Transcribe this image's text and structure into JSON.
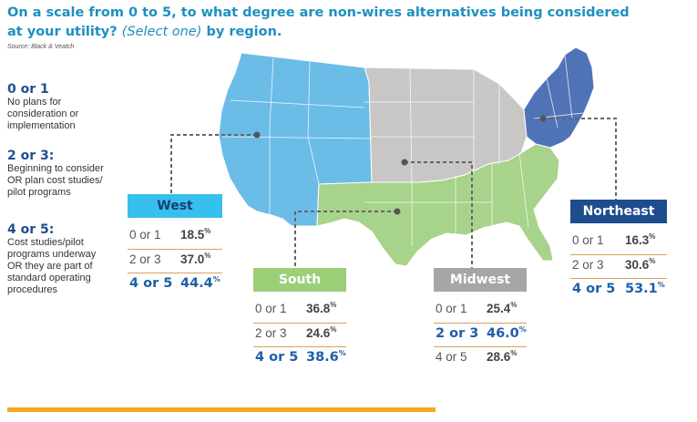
{
  "title": {
    "part1": "On a scale from 0 to 5, to what degree are non-wires alternatives being considered at your utility?",
    "italic": "(Select one)",
    "part2": "by region."
  },
  "source": "Source: Black & Veatch",
  "legend": [
    {
      "level": "0 or 1",
      "desc": [
        "No plans for",
        "consideration or",
        "implementation"
      ]
    },
    {
      "level": "2 or 3:",
      "desc": [
        "Beginning to consider",
        "OR plan cost studies/",
        "pilot programs"
      ]
    },
    {
      "level": "4 or 5:",
      "desc": [
        "Cost studies/pilot",
        "programs underway",
        "OR they are part of",
        "standard operating",
        "procedures"
      ]
    }
  ],
  "colors": {
    "west": "#6cbce8",
    "west_header": "#37c0ee",
    "south": "#a7d38a",
    "south_header": "#9bcf78",
    "midwest": "#c9c7c6",
    "midwest_header": "#a7a6a5",
    "northeast": "#5073b8",
    "northeast_header": "#1e4d8e",
    "accent_line": "#f5a623",
    "highlight_text": "#1f5fa8"
  },
  "chart_data": {
    "type": "table",
    "unit": "%",
    "categories": [
      "0 or 1",
      "2 or 3",
      "4 or 5"
    ],
    "series": [
      {
        "name": "West",
        "values": [
          18.5,
          37.0,
          44.4
        ]
      },
      {
        "name": "South",
        "values": [
          36.8,
          24.6,
          38.6
        ]
      },
      {
        "name": "Midwest",
        "values": [
          25.4,
          46.0,
          28.6
        ]
      },
      {
        "name": "Northeast",
        "values": [
          16.3,
          30.6,
          53.1
        ]
      }
    ]
  },
  "regions": {
    "west": {
      "name": "West",
      "rows": [
        {
          "label": "0 or 1",
          "value": "18.5"
        },
        {
          "label": "2 or 3",
          "value": "37.0"
        },
        {
          "label": "4 or 5",
          "value": "44.4"
        }
      ]
    },
    "south": {
      "name": "South",
      "rows": [
        {
          "label": "0 or 1",
          "value": "36.8"
        },
        {
          "label": "2 or 3",
          "value": "24.6"
        },
        {
          "label": "4 or 5",
          "value": "38.6"
        }
      ]
    },
    "midwest": {
      "name": "Midwest",
      "rows": [
        {
          "label": "0 or 1",
          "value": "25.4"
        },
        {
          "label": "2 or 3",
          "value": "46.0"
        },
        {
          "label": "4 or 5",
          "value": "28.6"
        }
      ]
    },
    "northeast": {
      "name": "Northeast",
      "rows": [
        {
          "label": "0 or 1",
          "value": "16.3"
        },
        {
          "label": "2 or 3",
          "value": "30.6"
        },
        {
          "label": "4 or 5",
          "value": "53.1"
        }
      ]
    },
    "percent_sign": "%"
  }
}
